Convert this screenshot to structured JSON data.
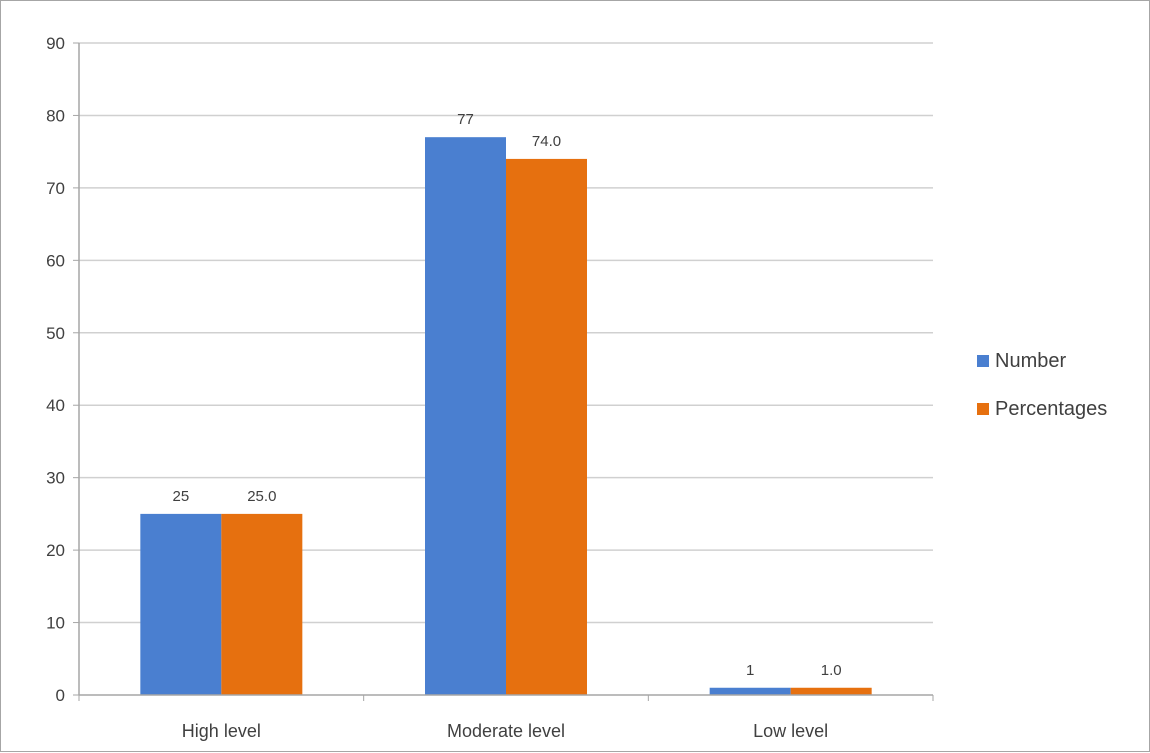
{
  "chart_data": {
    "type": "bar",
    "title": "",
    "xlabel": "",
    "ylabel": "",
    "categories": [
      "High level",
      "Moderate level",
      "Low level"
    ],
    "series": [
      {
        "name": "Number",
        "values": [
          25,
          77,
          1
        ],
        "labels": [
          "25",
          "77",
          "1"
        ],
        "color": "#4a7fd0"
      },
      {
        "name": "Percentages",
        "values": [
          25.0,
          74.0,
          1.0
        ],
        "labels": [
          "25.0",
          "74.0",
          "1.0"
        ],
        "color": "#e6700f"
      }
    ],
    "ylim": [
      0,
      90
    ],
    "yticks": [
      0,
      10,
      20,
      30,
      40,
      50,
      60,
      70,
      80,
      90
    ],
    "ytick_labels": [
      "0",
      "10",
      "20",
      "30",
      "40",
      "50",
      "60",
      "70",
      "80",
      "90"
    ],
    "grid": true,
    "legend_position": "right",
    "gridline_color": "#d0d0d0",
    "axis_color": "#a6a6a6"
  }
}
